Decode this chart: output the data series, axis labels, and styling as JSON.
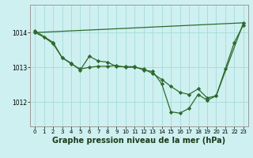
{
  "background_color": "#cff0f0",
  "grid_color": "#aadddd",
  "line_color": "#2d6a2d",
  "marker_color": "#2d6a2d",
  "xlabel": "Graphe pression niveau de la mer (hPa)",
  "xlabel_fontsize": 7,
  "xlim": [
    -0.5,
    23.5
  ],
  "ylim": [
    1011.3,
    1014.8
  ],
  "yticks": [
    1012,
    1013,
    1014
  ],
  "xticks": [
    0,
    1,
    2,
    3,
    4,
    5,
    6,
    7,
    8,
    9,
    10,
    11,
    12,
    13,
    14,
    15,
    16,
    17,
    18,
    19,
    20,
    21,
    22,
    23
  ],
  "line1_x": [
    0,
    1,
    2,
    3,
    4,
    5,
    6,
    7,
    8,
    9,
    10,
    11,
    12,
    13,
    14,
    15,
    16,
    17,
    18,
    19,
    20,
    21,
    22,
    23
  ],
  "line1_y": [
    1014.0,
    1013.87,
    1013.68,
    1013.28,
    1013.1,
    1012.95,
    1013.0,
    1013.03,
    1013.03,
    1013.05,
    1013.0,
    1013.0,
    1012.95,
    1012.82,
    1012.65,
    1012.45,
    1012.28,
    1012.22,
    1012.38,
    1012.12,
    1012.18,
    1012.95,
    1013.72,
    1014.22
  ],
  "line2_x": [
    0,
    2,
    3,
    4,
    5,
    6,
    7,
    8,
    9,
    10,
    11,
    12,
    13,
    14,
    15,
    16,
    17,
    18,
    19,
    20,
    23
  ],
  "line2_y": [
    1014.05,
    1013.72,
    1013.28,
    1013.12,
    1012.92,
    1013.32,
    1013.18,
    1013.15,
    1013.02,
    1013.02,
    1013.02,
    1012.92,
    1012.88,
    1012.52,
    1011.72,
    1011.68,
    1011.82,
    1012.22,
    1012.05,
    1012.18,
    1014.28
  ],
  "line3_x": [
    0,
    23
  ],
  "line3_y": [
    1014.0,
    1014.28
  ]
}
